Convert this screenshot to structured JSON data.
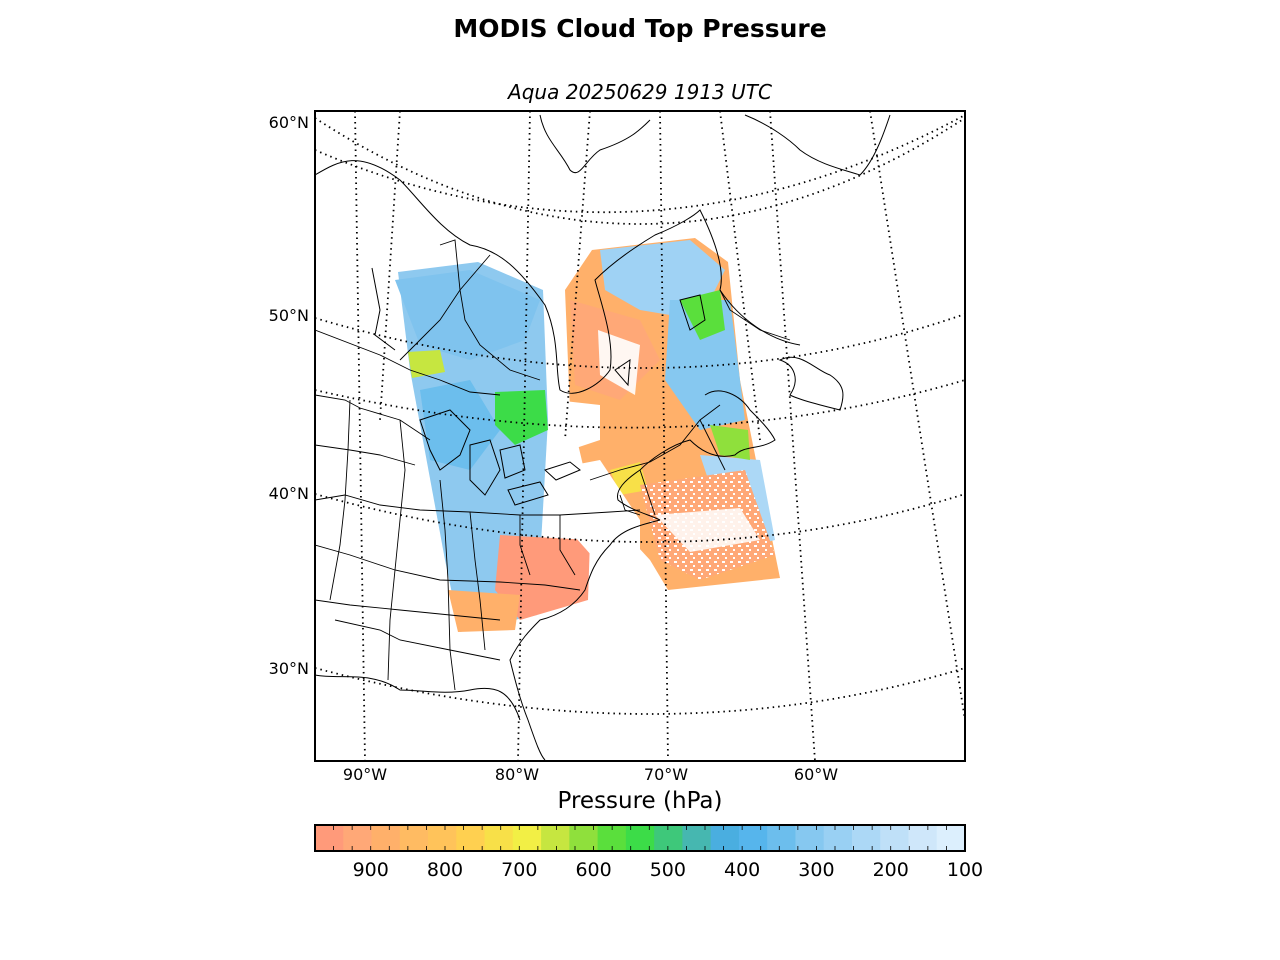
{
  "title": "MODIS Cloud Top Pressure",
  "subtitle": "Aqua 20250629 1913 UTC",
  "map": {
    "projection": "lambert-conformal",
    "lat_labels": [
      "60°N",
      "50°N",
      "40°N",
      "30°N"
    ],
    "lon_labels": [
      "90°W",
      "80°W",
      "70°W",
      "60°W"
    ],
    "graticule_style": "dotted",
    "coastlines": true,
    "state_borders": true
  },
  "colorbar": {
    "label": "Pressure (hPa)",
    "ticks": [
      "900",
      "800",
      "700",
      "600",
      "500",
      "400",
      "300",
      "200",
      "100"
    ],
    "range_hpa": [
      975,
      100
    ],
    "colors": [
      "#ff9a7a",
      "#ffa877",
      "#ffb06a",
      "#ffbb62",
      "#ffc35a",
      "#ffd050",
      "#f8e048",
      "#f2ef45",
      "#c6e640",
      "#8fe03c",
      "#5adf3c",
      "#3cdc48",
      "#3ec87a",
      "#46b7b0",
      "#4aaee0",
      "#56b5ec",
      "#6cbeed",
      "#86c8f0",
      "#99d0f3",
      "#acd8f6",
      "#bfe0f8",
      "#cfe7fa",
      "#dceffd"
    ]
  },
  "chart_data": {
    "type": "heatmap",
    "title": "MODIS Cloud Top Pressure",
    "subtitle": "Aqua 20250629 1913 UTC",
    "colorbar_label": "Pressure (hPa)",
    "colorbar_range": [
      975,
      100
    ],
    "colorbar_ticks": [
      900,
      800,
      700,
      600,
      500,
      400,
      300,
      200,
      100
    ],
    "lat_ticks": [
      60,
      50,
      40,
      30
    ],
    "lon_ticks": [
      -90,
      -80,
      -70,
      -60
    ]
  }
}
